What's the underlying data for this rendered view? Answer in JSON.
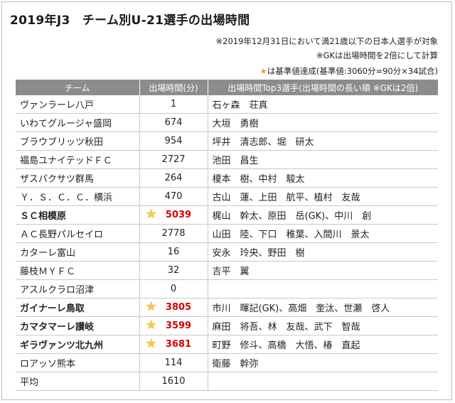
{
  "title": "2019年J3　チーム別U-21選手の出場時間",
  "notes": {
    "line1": "※2019年12月31日において満21歳以下の日本人選手が対象",
    "line2": "※GKは出場時間を2倍にして計算",
    "line3_star": "★",
    "line3_text": "は基準値達成(基準値:3060分=90分×34試合)"
  },
  "table": {
    "headers": [
      "チーム",
      "出場時間(分)",
      "出場時間Top3選手(出場時間の長い順 ※GKは2倍)"
    ],
    "rows": [
      {
        "team": "ヴァンラーレ八戸",
        "time": "1",
        "players": "石ヶ森　荘真",
        "star": false,
        "bold": false
      },
      {
        "team": "いわてグルージャ盛岡",
        "time": "674",
        "players": "大垣　勇樹",
        "star": false,
        "bold": false
      },
      {
        "team": "ブラウブリッツ秋田",
        "time": "954",
        "players": "坪井　清志郎、堀　研太",
        "star": false,
        "bold": false
      },
      {
        "team": "福島ユナイテッドＦＣ",
        "time": "2727",
        "players": "池田　昌生",
        "star": false,
        "bold": false
      },
      {
        "team": "ザスパクサツ群馬",
        "time": "264",
        "players": "榎本　樹、中村　駿太",
        "star": false,
        "bold": false
      },
      {
        "team": "Ｙ．Ｓ．Ｃ．Ｃ．横浜",
        "time": "470",
        "players": "古山　蓮、上田　航平、植村　友哉",
        "star": false,
        "bold": false
      },
      {
        "team": "ＳＣ相模原",
        "time": "5039",
        "players": "梶山　幹太、原田　岳(GK)、中川　創",
        "star": true,
        "bold": true
      },
      {
        "team": "ＡＣ長野パルセイロ",
        "time": "2778",
        "players": "山田　陸、下口　稚葉、入間川　景太",
        "star": false,
        "bold": false
      },
      {
        "team": "カターレ富山",
        "time": "16",
        "players": "安永　玲央、野田　樹",
        "star": false,
        "bold": false
      },
      {
        "team": "藤枝ＭＹＦＣ",
        "time": "32",
        "players": "吉平　翼",
        "star": false,
        "bold": false
      },
      {
        "team": "アスルクラロ沼津",
        "time": "0",
        "players": "",
        "star": false,
        "bold": false
      },
      {
        "team": "ガイナーレ鳥取",
        "time": "3805",
        "players": "市川　暉記(GK)、高畑　奎汰、世瀬　啓人",
        "star": true,
        "bold": true
      },
      {
        "team": "カマタマーレ讃岐",
        "time": "3599",
        "players": "麻田　将吾、林　友哉、武下　智哉",
        "star": true,
        "bold": true
      },
      {
        "team": "ギラヴァンツ北九州",
        "time": "3681",
        "players": "町野　修斗、高橋　大悟、椿　直起",
        "star": true,
        "bold": true
      },
      {
        "team": "ロアッソ熊本",
        "time": "114",
        "players": "衛藤　幹弥",
        "star": false,
        "bold": false
      },
      {
        "team": "平均",
        "time": "1610",
        "players": "",
        "star": false,
        "bold": false
      }
    ]
  },
  "colors": {
    "header_bg": "#8c8c8c",
    "highlight_red": "#d40000",
    "star": "#f6c94a"
  }
}
